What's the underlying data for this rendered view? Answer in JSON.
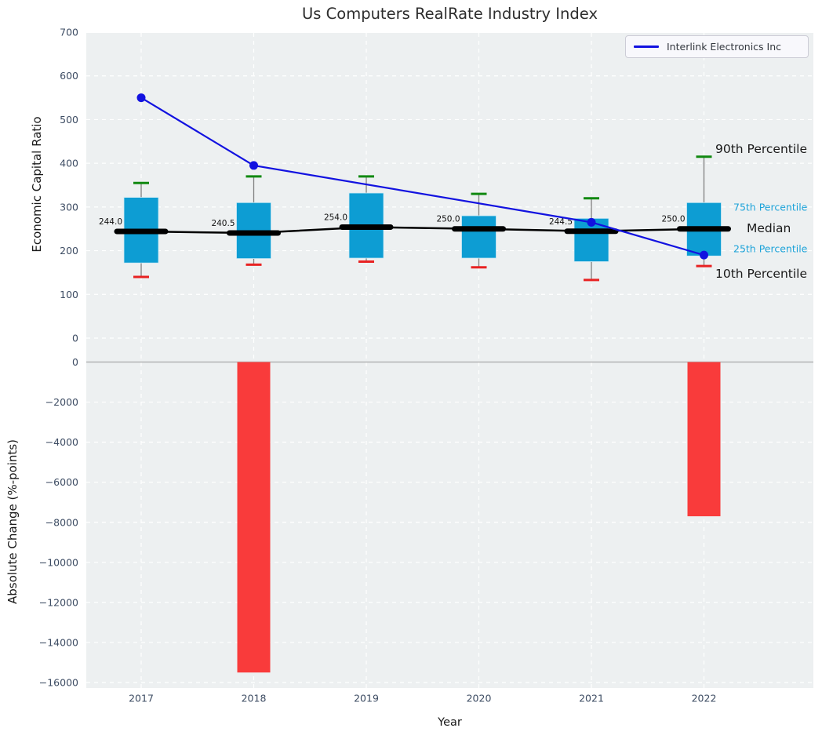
{
  "colors": {
    "plot_bg": "#edf0f1",
    "grid": "#ffffff",
    "box_fill": "#0d9dd3",
    "box_edge": "#cdeaf5",
    "median_line": "#000000",
    "whisker": "#7f7f7f",
    "cap_90th": "#118911",
    "cap_10th": "#e82222",
    "bar_negative": "#f93b3b",
    "company_line": "#1212e0",
    "zero_line": "#b3b3b3",
    "tick_text": "#3d4c63",
    "percentile_text_cyan": "#1da3d9",
    "annotation_text_black": "#1a1a1a"
  },
  "chart_data": [
    {
      "type": "boxplot+line",
      "title": "Us Computers RealRate Industry Index",
      "ylabel": "Economic Capital Ratio",
      "ylim": [
        0,
        700
      ],
      "yticks": [
        0,
        100,
        200,
        300,
        400,
        500,
        600,
        700
      ],
      "categories": [
        "2017",
        "2018",
        "2019",
        "2020",
        "2021",
        "2022"
      ],
      "grid": true,
      "legend_position": "upper right",
      "boxes": [
        {
          "year": "2017",
          "p10": 140,
          "p25": 172,
          "median": 244.0,
          "p75": 322,
          "p90": 355,
          "median_label": "244.0"
        },
        {
          "year": "2018",
          "p10": 168,
          "p25": 182,
          "median": 240.5,
          "p75": 310,
          "p90": 370,
          "median_label": "240.5"
        },
        {
          "year": "2019",
          "p10": 175,
          "p25": 183,
          "median": 254.0,
          "p75": 332,
          "p90": 370,
          "median_label": "254.0"
        },
        {
          "year": "2020",
          "p10": 162,
          "p25": 183,
          "median": 250.0,
          "p75": 280,
          "p90": 330,
          "median_label": "250.0"
        },
        {
          "year": "2021",
          "p10": 133,
          "p25": 175,
          "median": 244.5,
          "p75": 274,
          "p90": 320,
          "median_label": "244.5"
        },
        {
          "year": "2022",
          "p10": 165,
          "p25": 188,
          "median": 250.0,
          "p75": 310,
          "p90": 415,
          "median_label": "250.0"
        }
      ],
      "line_series": {
        "name": "Interlink Electronics Inc",
        "values": [
          550,
          395,
          null,
          null,
          265,
          190
        ]
      },
      "percentile_labels": {
        "p90": "90th Percentile",
        "p75": "75th Percentile",
        "median": "Median",
        "p25": "25th Percentile",
        "p10": "10th Percentile"
      }
    },
    {
      "type": "bar",
      "ylabel": "Absolute Change (%-points)",
      "xlabel": "Year",
      "ylim": [
        -16000,
        0
      ],
      "yticks": [
        0,
        -2000,
        -4000,
        -6000,
        -8000,
        -10000,
        -12000,
        -14000,
        -16000
      ],
      "categories": [
        "2017",
        "2018",
        "2019",
        "2020",
        "2021",
        "2022"
      ],
      "values": [
        null,
        -15500,
        null,
        null,
        null,
        -7700
      ],
      "grid": true
    }
  ]
}
